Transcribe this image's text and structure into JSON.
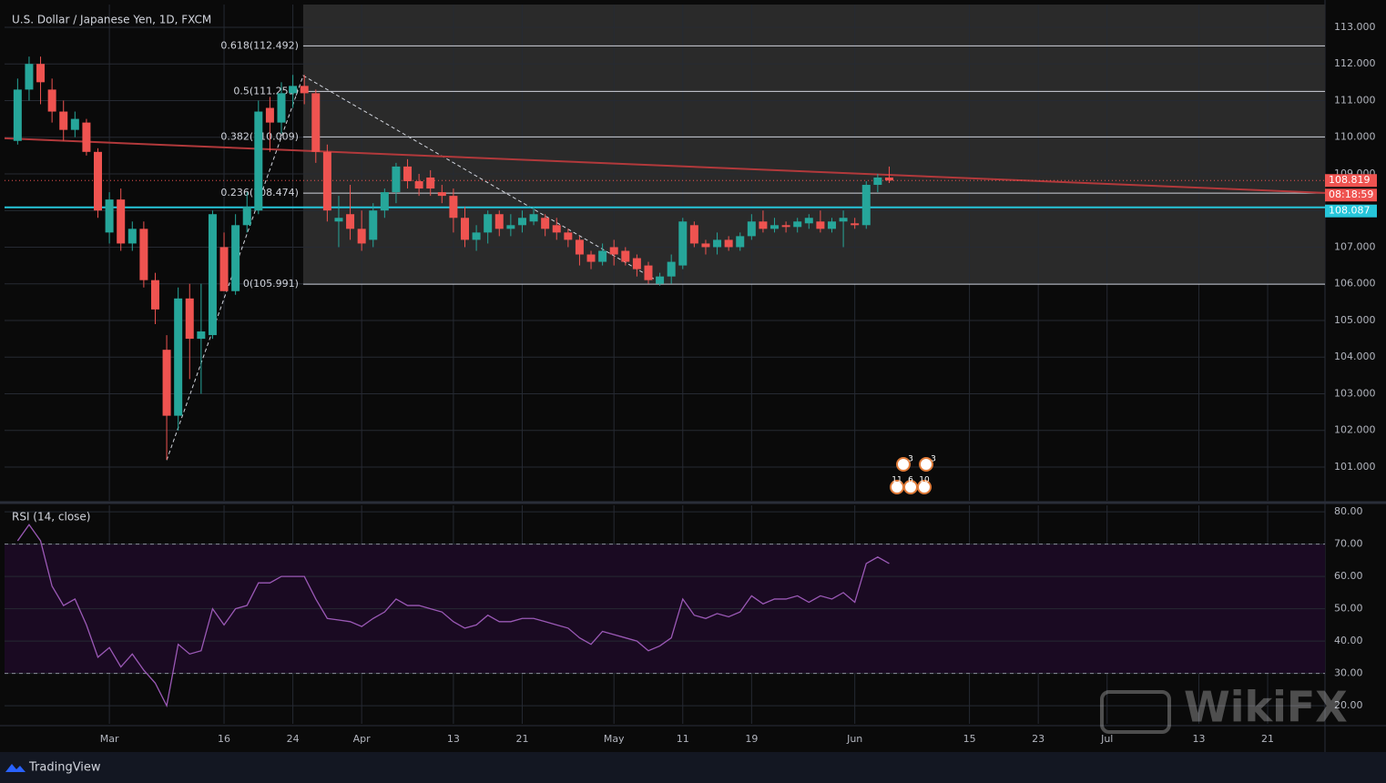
{
  "title": "U.S. Dollar / Japanese Yen, 1D, FXCM",
  "brand": "TradingView",
  "watermark": "WikiFX",
  "countdown": "08:18:59",
  "events": [
    "3",
    "3",
    "11",
    "6",
    "10"
  ],
  "chart_data": [
    {
      "type": "candlestick",
      "xlim": [
        -1.14,
        114
      ],
      "xticks": [
        {
          "value": 8,
          "label": "Mar"
        },
        {
          "value": 18,
          "label": "16"
        },
        {
          "value": 24,
          "label": "24"
        },
        {
          "value": 30,
          "label": "Apr"
        },
        {
          "value": 38,
          "label": "13"
        },
        {
          "value": 44,
          "label": "21"
        },
        {
          "value": 52,
          "label": "May"
        },
        {
          "value": 58,
          "label": "11"
        },
        {
          "value": 64,
          "label": "19"
        },
        {
          "value": 73,
          "label": "Jun"
        },
        {
          "value": 83,
          "label": "15"
        },
        {
          "value": 89,
          "label": "23"
        },
        {
          "value": 95,
          "label": "Jul"
        },
        {
          "value": 103,
          "label": "13"
        },
        {
          "value": 109,
          "label": "21"
        }
      ],
      "ylim": [
        100.08,
        113.62
      ],
      "yticks": [
        {
          "value": 101,
          "label": "101.000"
        },
        {
          "value": 102,
          "label": "102.000"
        },
        {
          "value": 103,
          "label": "103.000"
        },
        {
          "value": 104,
          "label": "104.000"
        },
        {
          "value": 105,
          "label": "105.000"
        },
        {
          "value": 106,
          "label": "106.000"
        },
        {
          "value": 107,
          "label": "107.000"
        },
        {
          "value": 108,
          "label": "108.000"
        },
        {
          "value": 109,
          "label": "109.000"
        },
        {
          "value": 110,
          "label": "110.000"
        },
        {
          "value": 111,
          "label": "111.000"
        },
        {
          "value": 112,
          "label": "112.000"
        },
        {
          "value": 113,
          "label": "113.000"
        }
      ],
      "up_color": "#26a69a",
      "down_color": "#ef5350",
      "open": [
        109.9,
        111.3,
        112.0,
        111.3,
        110.7,
        110.2,
        110.4,
        109.6,
        107.4,
        108.3,
        107.1,
        107.5,
        106.1,
        104.2,
        102.4,
        105.6,
        104.5,
        104.6,
        107.0,
        105.8,
        107.6,
        108.0,
        110.8,
        110.4,
        111.2,
        111.4,
        111.2,
        109.6,
        107.7,
        107.9,
        107.5,
        107.2,
        108.0,
        108.5,
        109.2,
        108.8,
        108.9,
        108.5,
        108.4,
        107.8,
        107.2,
        107.4,
        107.9,
        107.5,
        107.6,
        107.7,
        107.8,
        107.6,
        107.4,
        107.2,
        106.8,
        106.6,
        107.0,
        106.9,
        106.7,
        106.5,
        106.0,
        106.2,
        106.5,
        107.6,
        107.1,
        107.0,
        107.2,
        107.0,
        107.3,
        107.7,
        107.5,
        107.6,
        107.55,
        107.65,
        107.7,
        107.5,
        107.7,
        107.65,
        107.6,
        108.7,
        108.9
      ],
      "high": [
        111.6,
        112.2,
        112.2,
        111.6,
        111.0,
        110.7,
        110.5,
        109.7,
        108.5,
        108.6,
        107.7,
        107.7,
        106.3,
        104.6,
        105.9,
        106.0,
        106.0,
        108.0,
        107.4,
        107.9,
        108.5,
        111.0,
        111.1,
        111.5,
        111.7,
        111.7,
        111.3,
        109.8,
        108.4,
        108.7,
        108.0,
        108.2,
        108.6,
        109.3,
        109.4,
        109.0,
        109.1,
        108.7,
        108.6,
        108.1,
        107.6,
        108.0,
        108.0,
        107.9,
        108.0,
        108.1,
        107.9,
        107.8,
        107.5,
        107.3,
        106.9,
        107.1,
        107.2,
        107.0,
        106.8,
        106.6,
        106.3,
        106.8,
        107.8,
        107.7,
        107.2,
        107.4,
        107.3,
        107.4,
        107.9,
        108.0,
        107.8,
        107.7,
        107.8,
        107.9,
        108.0,
        107.8,
        108.0,
        107.8,
        108.8,
        109.0,
        109.2
      ],
      "low": [
        109.8,
        111.0,
        110.9,
        110.4,
        109.9,
        110.0,
        109.5,
        107.8,
        107.1,
        106.9,
        106.9,
        105.9,
        104.9,
        101.2,
        102.0,
        103.4,
        103.0,
        104.5,
        105.8,
        105.7,
        107.4,
        107.9,
        109.6,
        110.1,
        110.8,
        110.9,
        109.3,
        107.7,
        107.0,
        107.2,
        106.9,
        107.0,
        107.8,
        108.2,
        108.6,
        108.4,
        108.4,
        108.2,
        107.4,
        107.0,
        106.9,
        107.1,
        107.3,
        107.3,
        107.4,
        107.6,
        107.3,
        107.2,
        107.0,
        106.5,
        106.4,
        106.5,
        106.5,
        106.5,
        106.2,
        106.0,
        105.95,
        106.0,
        106.4,
        107.0,
        106.8,
        106.8,
        106.9,
        106.9,
        107.2,
        107.4,
        107.4,
        107.4,
        107.4,
        107.5,
        107.4,
        107.4,
        107.0,
        107.5,
        107.5,
        108.5,
        108.75
      ],
      "close": [
        111.3,
        112.0,
        111.5,
        110.7,
        110.2,
        110.5,
        109.6,
        108.0,
        108.3,
        107.1,
        107.5,
        106.1,
        105.3,
        102.4,
        105.6,
        104.5,
        104.7,
        107.9,
        105.8,
        107.6,
        108.1,
        110.7,
        110.4,
        111.2,
        111.4,
        111.2,
        109.6,
        108.0,
        107.8,
        107.5,
        107.1,
        108.0,
        108.5,
        109.2,
        108.8,
        108.6,
        108.6,
        108.4,
        107.8,
        107.2,
        107.4,
        107.9,
        107.5,
        107.6,
        107.8,
        107.9,
        107.5,
        107.4,
        107.2,
        106.8,
        106.6,
        106.9,
        106.8,
        106.6,
        106.4,
        106.1,
        106.2,
        106.6,
        107.7,
        107.1,
        107.0,
        107.2,
        107.0,
        107.3,
        107.7,
        107.5,
        107.6,
        107.55,
        107.7,
        107.8,
        107.5,
        107.7,
        107.8,
        107.6,
        108.7,
        108.9,
        108.819
      ],
      "fib_levels": [
        {
          "value": 112.492,
          "label": "0.618(112.492)"
        },
        {
          "value": 111.251,
          "label": "0.5(111.251)"
        },
        {
          "value": 110.009,
          "label": "0.382(110.009)"
        },
        {
          "value": 108.474,
          "label": "0.236(108.474)"
        },
        {
          "value": 105.991,
          "label": "0(105.991)"
        }
      ],
      "fib_path": {
        "x": [
          13,
          24.9,
          56
        ],
        "y": [
          101.19,
          111.68,
          106.04
        ]
      },
      "trendline": {
        "x": [
          -1.14,
          114
        ],
        "y": [
          109.97,
          108.48
        ],
        "color": "#b2393b"
      },
      "hline": 108.087,
      "hline_color": "#26c6da"
    },
    {
      "type": "line",
      "title": "RSI (14, close)",
      "color": "#9b59b6",
      "values": [
        71,
        76,
        71,
        57,
        51,
        53,
        45,
        35,
        38,
        32,
        36,
        31,
        27,
        20,
        39,
        36,
        37,
        50,
        45,
        50,
        51,
        58,
        58,
        60,
        60,
        60,
        53,
        47,
        46.5,
        46,
        44.5,
        47,
        49,
        53,
        51,
        51,
        50,
        49,
        46,
        44,
        45,
        48,
        46,
        46,
        47,
        47,
        46,
        45,
        44,
        41,
        39,
        43,
        42,
        41,
        40,
        37,
        38.5,
        41,
        53,
        48,
        47,
        48.5,
        47.5,
        49,
        54,
        51.5,
        53,
        53,
        54,
        52,
        54,
        53,
        55,
        52,
        64,
        66,
        64
      ],
      "ylim": [
        14.4,
        82
      ],
      "yticks": [
        20,
        30,
        40,
        50,
        60,
        70,
        80
      ],
      "yticks_text": [
        {
          "value": 20,
          "label": "20.00"
        },
        {
          "value": 30,
          "label": "30.00"
        },
        {
          "value": 40,
          "label": "40.00"
        },
        {
          "value": 50,
          "label": "50.00"
        },
        {
          "value": 60,
          "label": "60.00"
        },
        {
          "value": 70,
          "label": "70.00"
        },
        {
          "value": 80,
          "label": "80.00"
        }
      ],
      "bands": [
        30,
        70
      ]
    }
  ]
}
